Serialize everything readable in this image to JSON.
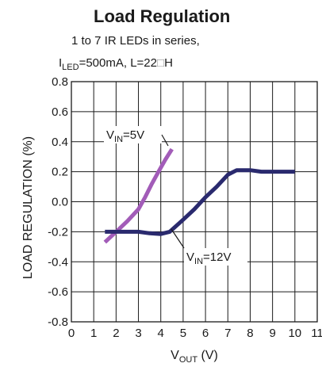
{
  "chart_data": {
    "type": "line",
    "title": "Load Regulation",
    "subtitle_line1": "1 to 7 IR LEDs in series,",
    "subtitle_line2": {
      "prefix": "I",
      "sub": "LED",
      "rest": "=500mA, L=22",
      "box": "□",
      "unit": "H"
    },
    "xlabel": {
      "prefix": "V",
      "sub": "OUT",
      "rest": " (V)"
    },
    "ylabel": "LOAD REGULATION (%)",
    "xlim": [
      0,
      11
    ],
    "ylim": [
      -0.8,
      0.8
    ],
    "x_ticks": [
      "0",
      "1",
      "2",
      "3",
      "4",
      "5",
      "6",
      "7",
      "8",
      "9",
      "10",
      "11"
    ],
    "y_ticks": [
      "0.8",
      "0.6",
      "0.4",
      "0.2",
      "0.0",
      "-0.2",
      "-0.4",
      "-0.6",
      "-0.8"
    ],
    "grid": true,
    "series": [
      {
        "name": "VIN=5V",
        "color": "#a25cb8",
        "x": [
          1.5,
          2.0,
          2.5,
          3.0,
          3.3,
          3.6,
          3.9,
          4.2,
          4.5
        ],
        "y": [
          -0.27,
          -0.2,
          -0.13,
          -0.05,
          0.03,
          0.12,
          0.2,
          0.28,
          0.35
        ]
      },
      {
        "name": "VIN=12V",
        "color": "#2a2a6e",
        "x": [
          1.5,
          2.0,
          3.0,
          3.5,
          4.0,
          4.4,
          5.0,
          5.5,
          6.0,
          6.5,
          7.0,
          7.4,
          8.0,
          8.5,
          9.0,
          10.0
        ],
        "y": [
          -0.2,
          -0.2,
          -0.2,
          -0.21,
          -0.215,
          -0.2,
          -0.12,
          -0.05,
          0.03,
          0.1,
          0.18,
          0.21,
          0.21,
          0.2,
          0.2,
          0.2
        ]
      }
    ],
    "annotations": [
      {
        "series": "VIN=5V",
        "prefix": "V",
        "sub": "IN",
        "rest": "=5V"
      },
      {
        "series": "VIN=12V",
        "prefix": "V",
        "sub": "IN",
        "rest": "=12V"
      }
    ]
  },
  "colors": {
    "grid": "#1a1a1a",
    "text": "#1a1a1a",
    "background": "#ffffff"
  }
}
